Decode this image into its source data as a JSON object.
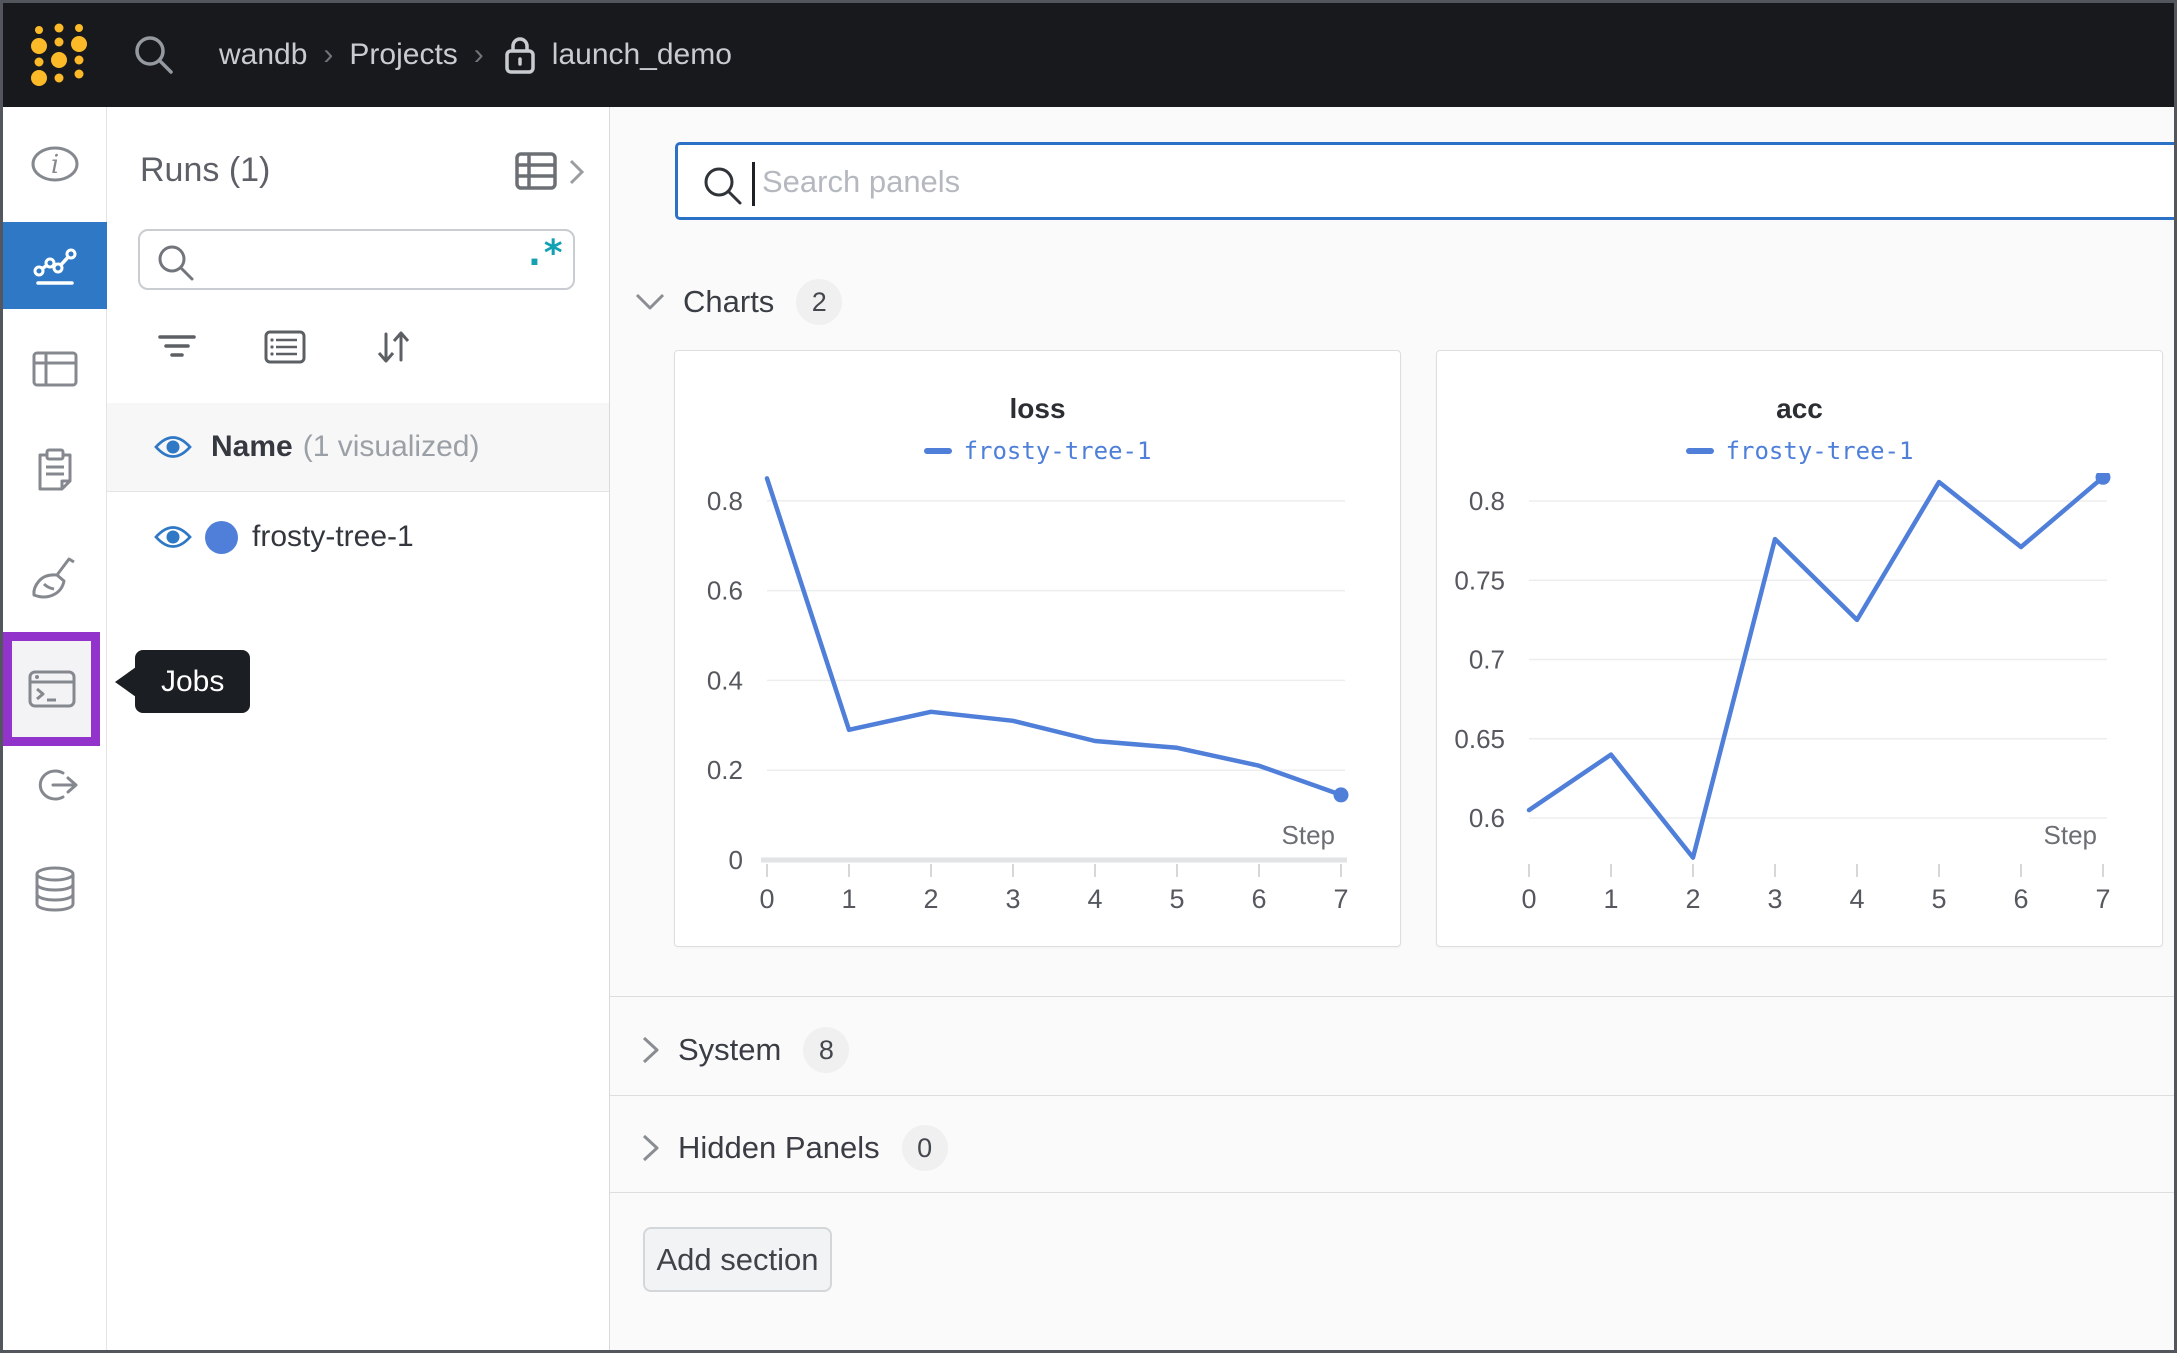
{
  "navbar": {
    "breadcrumb": {
      "org": "wandb",
      "section": "Projects",
      "project": "launch_demo"
    }
  },
  "colors": {
    "accent_blue": "#2e78c5",
    "run_blue": "#4f7fd9",
    "highlight_purple": "#9233cc",
    "regex_teal": "#12a0b2",
    "navbar_bg": "#17191d",
    "logo_yellow": "#fcba29"
  },
  "icons": {
    "logo": "wandb-dots",
    "nav_search": "magnifier",
    "breadcrumb_lock": "lock",
    "sidebar": [
      "info",
      "line-chart",
      "table",
      "clipboard",
      "broom",
      "terminal-jobs",
      "link-arrow",
      "database"
    ],
    "runs_tools": [
      "filter",
      "list",
      "sort-arrows"
    ],
    "regex_toggle": ".*"
  },
  "sidebar": {
    "tooltip": "Jobs"
  },
  "runs_panel": {
    "title": "Runs (1)",
    "search_placeholder": "",
    "header": {
      "name": "Name",
      "visualized": "(1 visualized)"
    },
    "runs": [
      {
        "name": "frosty-tree-1",
        "color": "#4f7fd9"
      }
    ]
  },
  "main": {
    "search_placeholder": "Search panels",
    "sections": {
      "charts": {
        "label": "Charts",
        "count": "2"
      },
      "system": {
        "label": "System",
        "count": "8"
      },
      "hidden": {
        "label": "Hidden Panels",
        "count": "0"
      }
    },
    "add_section_label": "Add section"
  },
  "chart_data": [
    {
      "type": "line",
      "title": "loss",
      "xlabel": "Step",
      "x": [
        0,
        1,
        2,
        3,
        4,
        5,
        6,
        7
      ],
      "series": [
        {
          "name": "frosty-tree-1",
          "color": "#4f7fd9",
          "values": [
            0.85,
            0.29,
            0.33,
            0.31,
            0.265,
            0.25,
            0.21,
            0.145
          ]
        }
      ],
      "ylim": [
        0,
        0.862
      ],
      "yticks": [
        0,
        0.2,
        0.4,
        0.6,
        0.8
      ],
      "baseline": true,
      "grid": true,
      "legend_position": "top",
      "end_dot": true
    },
    {
      "type": "line",
      "title": "acc",
      "xlabel": "Step",
      "x": [
        0,
        1,
        2,
        3,
        4,
        5,
        6,
        7
      ],
      "series": [
        {
          "name": "frosty-tree-1",
          "color": "#4f7fd9",
          "values": [
            0.605,
            0.64,
            0.575,
            0.776,
            0.725,
            0.812,
            0.771,
            0.815
          ]
        }
      ],
      "ylim": [
        0.5735,
        0.8177
      ],
      "yticks": [
        0.6,
        0.65,
        0.7,
        0.75,
        0.8
      ],
      "baseline": false,
      "grid": true,
      "legend_position": "top",
      "end_dot": true
    }
  ]
}
